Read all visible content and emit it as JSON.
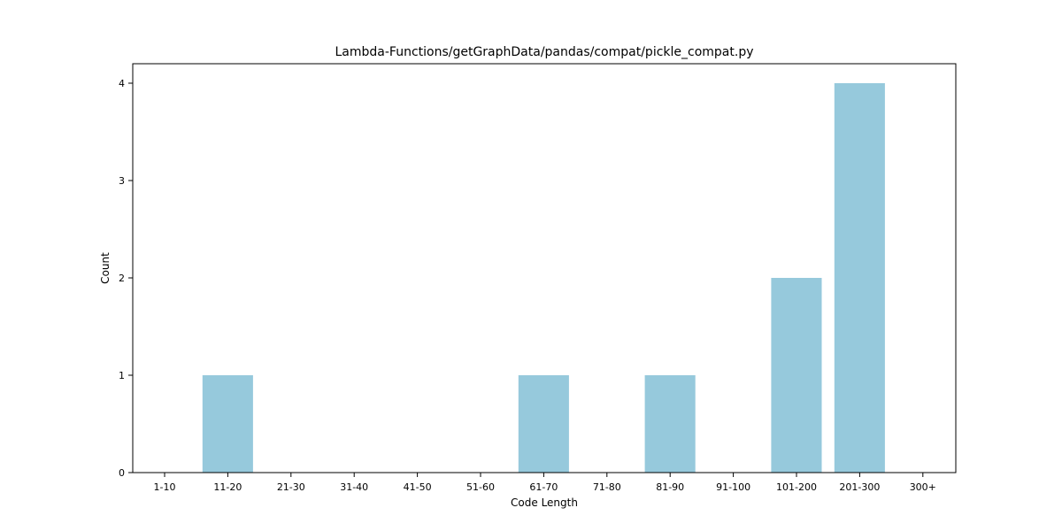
{
  "chart_data": {
    "type": "bar",
    "title": "Lambda-Functions/getGraphData/pandas/compat/pickle_compat.py",
    "xlabel": "Code Length",
    "ylabel": "Count",
    "categories": [
      "1-10",
      "11-20",
      "21-30",
      "31-40",
      "41-50",
      "51-60",
      "61-70",
      "71-80",
      "81-90",
      "91-100",
      "101-200",
      "201-300",
      "300+"
    ],
    "values": [
      0,
      1,
      0,
      0,
      0,
      0,
      1,
      0,
      1,
      0,
      2,
      4,
      0
    ],
    "ylim": [
      0,
      4.2
    ],
    "yticks": [
      0,
      1,
      2,
      3,
      4
    ],
    "bar_color": "#96c9dc",
    "grid": false,
    "legend": "none"
  }
}
